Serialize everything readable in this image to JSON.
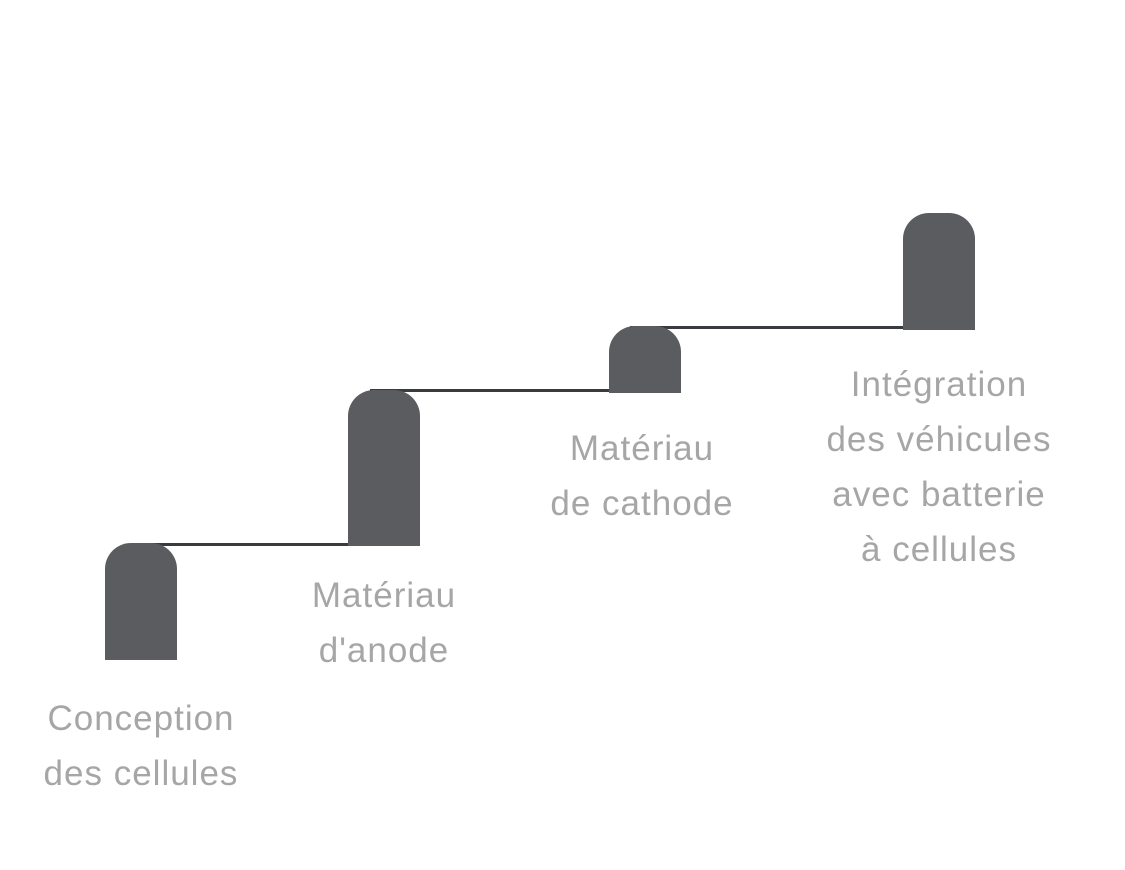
{
  "colors": {
    "pillar": "#5b5c60",
    "connector": "#3a3b3e",
    "label": "#a6a6a6",
    "background": "#ffffff"
  },
  "steps": [
    {
      "label_lines": [
        "Conception",
        "des cellules"
      ]
    },
    {
      "label_lines": [
        "Matériau",
        "d'anode"
      ]
    },
    {
      "label_lines": [
        "Matériau",
        "de cathode"
      ]
    },
    {
      "label_lines": [
        "Intégration",
        "des véhicules",
        "avec batterie",
        "à cellules"
      ]
    }
  ]
}
